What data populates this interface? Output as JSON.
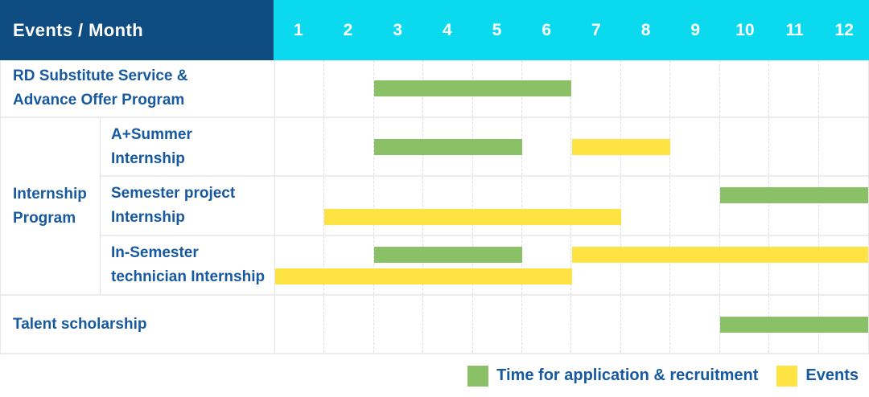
{
  "header": {
    "title": "Events / Month",
    "months": [
      "1",
      "2",
      "3",
      "4",
      "5",
      "6",
      "7",
      "8",
      "9",
      "10",
      "11",
      "12"
    ]
  },
  "group": {
    "label": "Internship Program",
    "label_lines": [
      "Internship",
      "Program"
    ]
  },
  "legend": {
    "position": "bottom-right",
    "items": [
      {
        "color_key": "green",
        "label": "Time for application & recruitment"
      },
      {
        "color_key": "yellow",
        "label": "Events"
      }
    ]
  },
  "colors": {
    "navy": "#0f4c81",
    "cyan": "#0bd9ee",
    "green": "#8ac166",
    "yellow": "#ffe342",
    "label": "#17599f"
  },
  "chart_data": {
    "type": "bar",
    "subtype": "gantt-timeline",
    "title": "Events / Month",
    "x_label": "Month",
    "x_ticks": [
      "1",
      "2",
      "3",
      "4",
      "5",
      "6",
      "7",
      "8",
      "9",
      "10",
      "11",
      "12"
    ],
    "x_range": [
      1,
      12
    ],
    "grid": "vertical-dashed",
    "legend_position": "bottom-right",
    "series_colors": {
      "Time for application & recruitment": "#8ac166",
      "Events": "#ffe342"
    },
    "rows": [
      {
        "group": "",
        "label": "RD Substitute Service & Advance Offer Program",
        "label_lines": [
          "RD Substitute Service &",
          "Advance Offer Program"
        ],
        "bars": [
          {
            "series": "Time for application & recruitment",
            "color": "green",
            "start_month": 3,
            "end_month": 6,
            "line": "center"
          }
        ]
      },
      {
        "group": "Internship Program",
        "label": "A+Summer Internship",
        "label_lines": [
          "A+Summer",
          "Internship"
        ],
        "bars": [
          {
            "series": "Time for application & recruitment",
            "color": "green",
            "start_month": 3,
            "end_month": 5,
            "line": "center"
          },
          {
            "series": "Events",
            "color": "yellow",
            "start_month": 7,
            "end_month": 8,
            "line": "center"
          }
        ]
      },
      {
        "group": "Internship Program",
        "label": "Semester project Internship",
        "label_lines": [
          "Semester project",
          "Internship"
        ],
        "bars": [
          {
            "series": "Time for application & recruitment",
            "color": "green",
            "start_month": 10,
            "end_month": 12,
            "line": "top"
          },
          {
            "series": "Events",
            "color": "yellow",
            "start_month": 2,
            "end_month": 7,
            "line": "bottom"
          }
        ]
      },
      {
        "group": "Internship Program",
        "label": "In-Semester technician Internship",
        "label_lines": [
          "In-Semester",
          "technician Internship"
        ],
        "bars": [
          {
            "series": "Time for application & recruitment",
            "color": "green",
            "start_month": 3,
            "end_month": 5,
            "line": "top"
          },
          {
            "series": "Events",
            "color": "yellow",
            "start_month": 7,
            "end_month": 12,
            "line": "top"
          },
          {
            "series": "Events",
            "color": "yellow",
            "start_month": 1,
            "end_month": 6,
            "line": "bottom"
          }
        ]
      },
      {
        "group": "",
        "label": "Talent scholarship",
        "label_lines": [
          "Talent scholarship"
        ],
        "bars": [
          {
            "series": "Time for application & recruitment",
            "color": "green",
            "start_month": 10,
            "end_month": 12,
            "line": "center"
          }
        ]
      }
    ]
  }
}
